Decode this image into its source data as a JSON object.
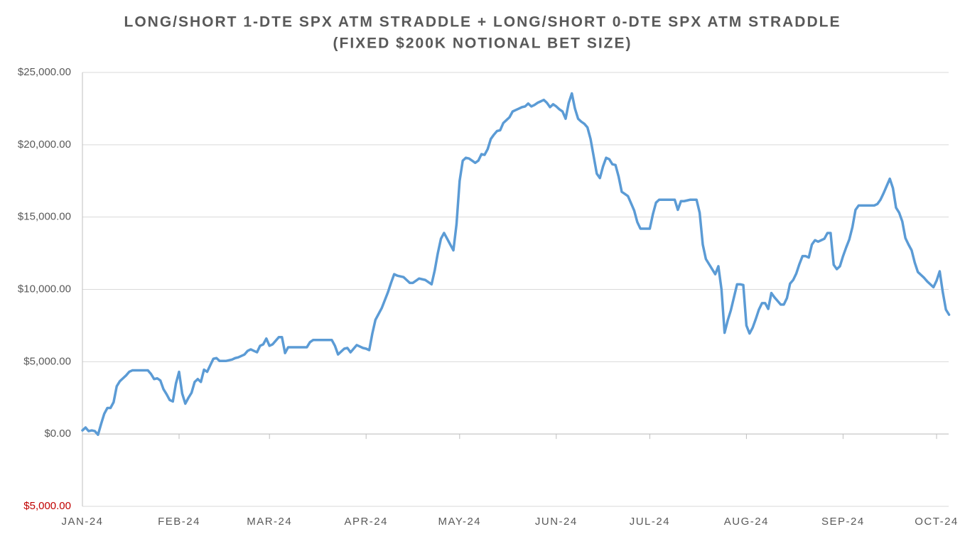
{
  "chart_data": {
    "type": "line",
    "title": "LONG/SHORT 1-DTE SPX ATM STRADDLE + LONG/SHORT 0-DTE SPX ATM STRADDLE",
    "subtitle": "(FIXED $200K NOTIONAL BET SIZE)",
    "categories": [
      "JAN-24",
      null,
      null,
      null,
      null,
      null,
      null,
      null,
      null,
      null,
      null,
      null,
      null,
      null,
      null,
      null,
      null,
      null,
      null,
      null,
      null,
      null,
      null,
      null,
      null,
      null,
      null,
      null,
      null,
      null,
      null,
      "FEB-24",
      null,
      null,
      null,
      null,
      null,
      null,
      null,
      null,
      null,
      null,
      null,
      null,
      null,
      null,
      null,
      null,
      null,
      null,
      null,
      null,
      null,
      null,
      null,
      null,
      null,
      null,
      null,
      null,
      "MAR-24",
      null,
      null,
      null,
      null,
      null,
      null,
      null,
      null,
      null,
      null,
      null,
      null,
      null,
      null,
      null,
      null,
      null,
      null,
      null,
      null,
      null,
      null,
      null,
      null,
      null,
      null,
      null,
      null,
      null,
      null,
      "APR-24",
      null,
      null,
      null,
      null,
      null,
      null,
      null,
      null,
      null,
      null,
      null,
      null,
      null,
      null,
      null,
      null,
      null,
      null,
      null,
      null,
      null,
      null,
      null,
      null,
      null,
      null,
      null,
      null,
      null,
      "MAY-24",
      null,
      null,
      null,
      null,
      null,
      null,
      null,
      null,
      null,
      null,
      null,
      null,
      null,
      null,
      null,
      null,
      null,
      null,
      null,
      null,
      null,
      null,
      null,
      null,
      null,
      null,
      null,
      null,
      null,
      null,
      "JUN-24",
      null,
      null,
      null,
      null,
      null,
      null,
      null,
      null,
      null,
      null,
      null,
      null,
      null,
      null,
      null,
      null,
      null,
      null,
      null,
      null,
      null,
      null,
      null,
      null,
      null,
      null,
      null,
      null,
      null,
      "JUL-24",
      null,
      null,
      null,
      null,
      null,
      null,
      null,
      null,
      null,
      null,
      null,
      null,
      null,
      null,
      null,
      null,
      null,
      null,
      null,
      null,
      null,
      null,
      null,
      null,
      null,
      null,
      null,
      null,
      null,
      null,
      "AUG-24",
      null,
      null,
      null,
      null,
      null,
      null,
      null,
      null,
      null,
      null,
      null,
      null,
      null,
      null,
      null,
      null,
      null,
      null,
      null,
      null,
      null,
      null,
      null,
      null,
      null,
      null,
      null,
      null,
      null,
      null,
      "SEP-24",
      null,
      null,
      null,
      null,
      null,
      null,
      null,
      null,
      null,
      null,
      null,
      null,
      null,
      null,
      null,
      null,
      null,
      null,
      null,
      null,
      null,
      null,
      null,
      null,
      null,
      null,
      null,
      null,
      null,
      "OCT-24",
      null,
      null,
      null,
      null
    ],
    "series": [
      {
        "color": "#5b9bd5",
        "values": [
          250,
          450,
          200,
          250,
          200,
          -50,
          700,
          1400,
          1800,
          1800,
          2200,
          3300,
          3650,
          3850,
          4050,
          4300,
          4400,
          4400,
          4400,
          4400,
          4400,
          4400,
          4150,
          3800,
          3850,
          3700,
          3100,
          2750,
          2350,
          2250,
          3500,
          4300,
          2800,
          2100,
          2500,
          2850,
          3600,
          3800,
          3600,
          4450,
          4300,
          4750,
          5200,
          5250,
          5050,
          5050,
          5050,
          5100,
          5150,
          5250,
          5300,
          5400,
          5500,
          5750,
          5850,
          5750,
          5650,
          6100,
          6200,
          6600,
          6100,
          6200,
          6450,
          6700,
          6700,
          5600,
          6000,
          6000,
          6000,
          6000,
          6000,
          6000,
          6000,
          6350,
          6500,
          6500,
          6500,
          6500,
          6500,
          6500,
          6500,
          6100,
          5500,
          5700,
          5900,
          5950,
          5650,
          5900,
          6150,
          6050,
          5950,
          5900,
          5800,
          6950,
          7900,
          8300,
          8700,
          9250,
          9800,
          10450,
          11050,
          10950,
          10900,
          10850,
          10650,
          10450,
          10450,
          10600,
          10750,
          10700,
          10650,
          10500,
          10350,
          11300,
          12500,
          13500,
          13900,
          13500,
          13100,
          12700,
          14500,
          17500,
          18900,
          19100,
          19050,
          18900,
          18750,
          18900,
          19350,
          19300,
          19700,
          20400,
          20700,
          20950,
          21000,
          21500,
          21700,
          21900,
          22300,
          22400,
          22500,
          22600,
          22650,
          22850,
          22650,
          22750,
          22900,
          23000,
          23100,
          22900,
          22600,
          22800,
          22650,
          22450,
          22300,
          21800,
          22900,
          23550,
          22500,
          21800,
          21600,
          21450,
          21200,
          20400,
          19200,
          18000,
          17700,
          18500,
          19100,
          19000,
          18650,
          18600,
          17800,
          16750,
          16600,
          16450,
          15950,
          15450,
          14650,
          14200,
          14200,
          14200,
          14200,
          15200,
          16000,
          16200,
          16200,
          16200,
          16200,
          16200,
          16200,
          15500,
          16100,
          16100,
          16150,
          16200,
          16200,
          16200,
          15300,
          13100,
          12100,
          11750,
          11400,
          11050,
          11600,
          10000,
          7000,
          7850,
          8550,
          9450,
          10350,
          10350,
          10300,
          7500,
          6950,
          7350,
          7950,
          8600,
          9050,
          9050,
          8650,
          9750,
          9450,
          9200,
          8950,
          8950,
          9400,
          10400,
          10650,
          11100,
          11750,
          12300,
          12300,
          12200,
          13100,
          13400,
          13300,
          13400,
          13500,
          13900,
          13900,
          11700,
          11400,
          11600,
          12300,
          12900,
          13450,
          14300,
          15500,
          15800,
          15800,
          15800,
          15800,
          15800,
          15800,
          15900,
          16200,
          16650,
          17150,
          17650,
          17000,
          15650,
          15300,
          14700,
          13550,
          13100,
          12700,
          11850,
          11200,
          11000,
          10800,
          10550,
          10350,
          10150,
          10600,
          11250,
          9800,
          8600,
          8250
        ]
      }
    ],
    "ylim": [
      -5000,
      25000
    ],
    "yticks": [
      {
        "value": -5000,
        "label": "$5,000.00"
      },
      {
        "value": 0,
        "label": "$0.00"
      },
      {
        "value": 5000,
        "label": "$5,000.00"
      },
      {
        "value": 10000,
        "label": "$10,000.00"
      },
      {
        "value": 15000,
        "label": "$15,000.00"
      },
      {
        "value": 20000,
        "label": "$20,000.00"
      },
      {
        "value": 25000,
        "label": "$25,000.00"
      }
    ],
    "negative_tick_color": "#c00000",
    "grid": true
  }
}
